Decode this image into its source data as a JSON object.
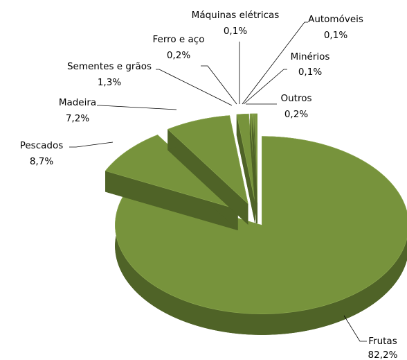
{
  "chart_data": {
    "type": "pie",
    "color": "#77933c",
    "side_color": "#4f6327",
    "categories": [
      "Frutas",
      "Pescados",
      "Madeira",
      "Sementes e grãos",
      "Ferro e aço",
      "Máquinas elétricas",
      "Automóveis",
      "Minérios",
      "Outros"
    ],
    "values": [
      82.2,
      8.7,
      7.2,
      1.3,
      0.2,
      0.1,
      0.1,
      0.1,
      0.2
    ],
    "value_labels": [
      "82,2%",
      "8,7%",
      "7,2%",
      "1,3%",
      "0,2%",
      "0,1%",
      "0,1%",
      "0,1%",
      "0,2%"
    ]
  }
}
